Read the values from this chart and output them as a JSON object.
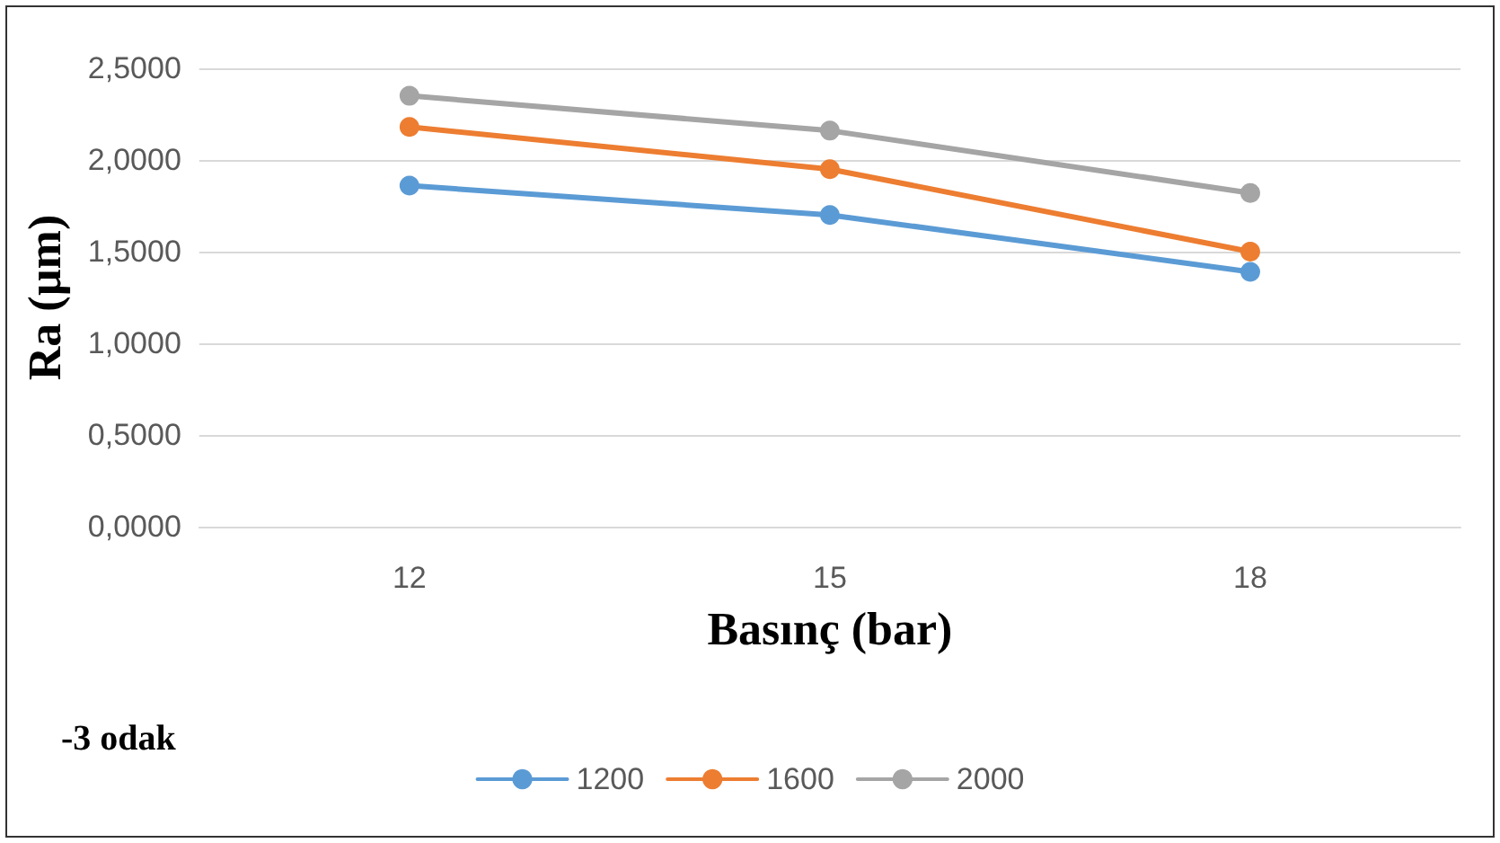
{
  "chart_data": {
    "type": "line",
    "xlabel": "Basınç (bar)",
    "ylabel": "Ra (µm)",
    "categories": [
      "12",
      "15",
      "18"
    ],
    "series": [
      {
        "name": "1200",
        "color": "#5b9bd5",
        "values": [
          1.86,
          1.7,
          1.39
        ]
      },
      {
        "name": "1600",
        "color": "#ed7d31",
        "values": [
          2.18,
          1.95,
          1.5
        ]
      },
      {
        "name": "2000",
        "color": "#a5a5a5",
        "values": [
          2.35,
          2.16,
          1.82
        ]
      }
    ],
    "ylim": [
      0,
      2.5
    ],
    "yticks": [
      {
        "value": 0,
        "label": "0,0000"
      },
      {
        "value": 0.5,
        "label": "0,5000"
      },
      {
        "value": 1,
        "label": "1,0000"
      },
      {
        "value": 1.5,
        "label": "1,5000"
      },
      {
        "value": 2,
        "label": "2,0000"
      },
      {
        "value": 2.5,
        "label": "2,5000"
      }
    ],
    "grid": "y",
    "legend": "bottom",
    "marker": "circle",
    "line_style": "solid",
    "annotations": [
      "-3 odak"
    ]
  }
}
